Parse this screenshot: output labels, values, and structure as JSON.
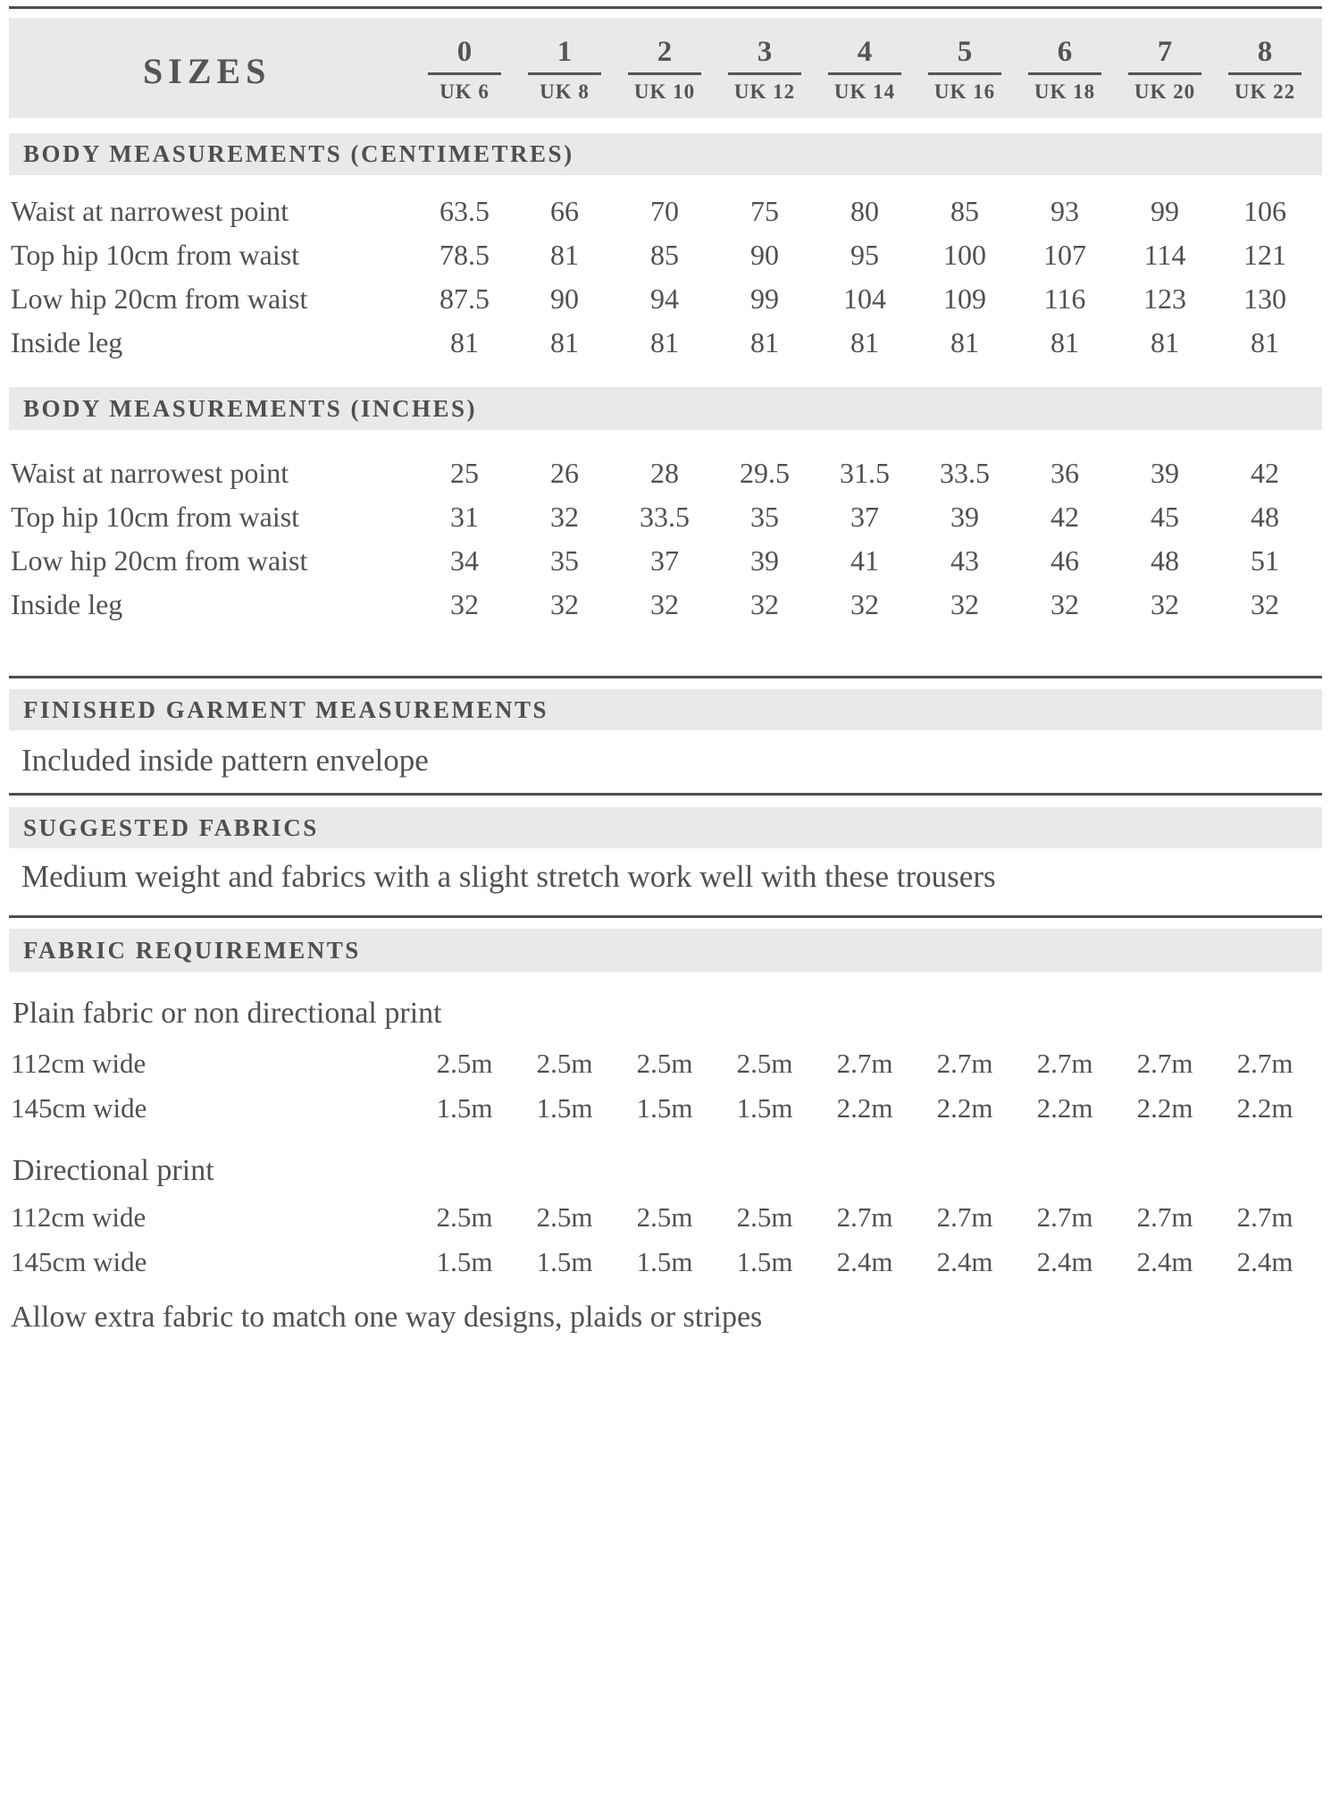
{
  "colors": {
    "band_gray": "#e9e9e9",
    "rule_gray": "#4e4e4e",
    "text_gray": "#515151"
  },
  "header": {
    "sizes_label": "SIZES",
    "columns": [
      {
        "size": "0",
        "uk": "UK 6"
      },
      {
        "size": "1",
        "uk": "UK 8"
      },
      {
        "size": "2",
        "uk": "UK 10"
      },
      {
        "size": "3",
        "uk": "UK 12"
      },
      {
        "size": "4",
        "uk": "UK 14"
      },
      {
        "size": "5",
        "uk": "UK 16"
      },
      {
        "size": "6",
        "uk": "UK 18"
      },
      {
        "size": "7",
        "uk": "UK 20"
      },
      {
        "size": "8",
        "uk": "UK 22"
      }
    ]
  },
  "body_cm": {
    "title": "BODY MEASUREMENTS (CENTIMETRES)",
    "rows": [
      {
        "label": "Waist at narrowest point",
        "values": [
          "63.5",
          "66",
          "70",
          "75",
          "80",
          "85",
          "93",
          "99",
          "106"
        ]
      },
      {
        "label": "Top hip 10cm from waist",
        "values": [
          "78.5",
          "81",
          "85",
          "90",
          "95",
          "100",
          "107",
          "114",
          "121"
        ]
      },
      {
        "label": "Low hip 20cm from waist",
        "values": [
          "87.5",
          "90",
          "94",
          "99",
          "104",
          "109",
          "116",
          "123",
          "130"
        ]
      },
      {
        "label": "Inside leg",
        "values": [
          "81",
          "81",
          "81",
          "81",
          "81",
          "81",
          "81",
          "81",
          "81"
        ]
      }
    ]
  },
  "body_in": {
    "title": "BODY MEASUREMENTS (INCHES)",
    "rows": [
      {
        "label": "Waist at narrowest point",
        "values": [
          "25",
          "26",
          "28",
          "29.5",
          "31.5",
          "33.5",
          "36",
          "39",
          "42"
        ]
      },
      {
        "label": "Top hip 10cm from waist",
        "values": [
          "31",
          "32",
          "33.5",
          "35",
          "37",
          "39",
          "42",
          "45",
          "48"
        ]
      },
      {
        "label": "Low hip 20cm from waist",
        "values": [
          "34",
          "35",
          "37",
          "39",
          "41",
          "43",
          "46",
          "48",
          "51"
        ]
      },
      {
        "label": "Inside leg",
        "values": [
          "32",
          "32",
          "32",
          "32",
          "32",
          "32",
          "32",
          "32",
          "32"
        ]
      }
    ]
  },
  "finished": {
    "title": "FINISHED GARMENT MEASUREMENTS",
    "note": "Included inside pattern envelope"
  },
  "suggested": {
    "title": "SUGGESTED FABRICS",
    "note": "Medium weight and fabrics with a slight stretch work well with these trousers"
  },
  "requirements": {
    "title": "FABRIC REQUIREMENTS",
    "groups": [
      {
        "label": "Plain fabric or non directional print",
        "rows": [
          {
            "label": "112cm wide",
            "values": [
              "2.5m",
              "2.5m",
              "2.5m",
              "2.5m",
              "2.7m",
              "2.7m",
              "2.7m",
              "2.7m",
              "2.7m"
            ]
          },
          {
            "label": "145cm wide",
            "values": [
              "1.5m",
              "1.5m",
              "1.5m",
              "1.5m",
              "2.2m",
              "2.2m",
              "2.2m",
              "2.2m",
              "2.2m"
            ]
          }
        ]
      },
      {
        "label": "Directional print",
        "rows": [
          {
            "label": "112cm wide",
            "values": [
              "2.5m",
              "2.5m",
              "2.5m",
              "2.5m",
              "2.7m",
              "2.7m",
              "2.7m",
              "2.7m",
              "2.7m"
            ]
          },
          {
            "label": "145cm wide",
            "values": [
              "1.5m",
              "1.5m",
              "1.5m",
              "1.5m",
              "2.4m",
              "2.4m",
              "2.4m",
              "2.4m",
              "2.4m"
            ]
          }
        ]
      }
    ],
    "footnote": "Allow extra fabric to match one way designs, plaids or stripes"
  }
}
